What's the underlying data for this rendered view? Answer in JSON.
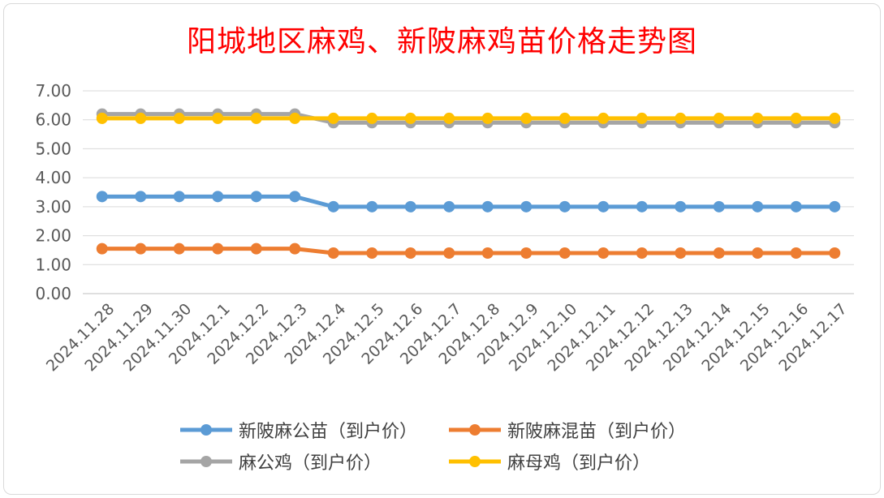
{
  "chart_data": {
    "type": "line",
    "title": "阳城地区麻鸡、新陂麻鸡苗价格走势图",
    "categories": [
      "2024.11.28",
      "2024.11.29",
      "2024.11.30",
      "2024.12.1",
      "2024.12.2",
      "2024.12.3",
      "2024.12.4",
      "2024.12.5",
      "2024.12.6",
      "2024.12.7",
      "2024.12.8",
      "2024.12.9",
      "2024.12.10",
      "2024.12.11",
      "2024.12.12",
      "2024.12.13",
      "2024.12.14",
      "2024.12.15",
      "2024.12.16",
      "2024.12.17"
    ],
    "ylim": [
      0,
      7
    ],
    "yticks": [
      "0.00",
      "1.00",
      "2.00",
      "3.00",
      "4.00",
      "5.00",
      "6.00",
      "7.00"
    ],
    "grid": true,
    "legend_position": "bottom",
    "series": [
      {
        "name": "新陂麻公苗（到户价）",
        "color": "#5b9bd5",
        "values": [
          3.35,
          3.35,
          3.35,
          3.35,
          3.35,
          3.35,
          3.0,
          3.0,
          3.0,
          3.0,
          3.0,
          3.0,
          3.0,
          3.0,
          3.0,
          3.0,
          3.0,
          3.0,
          3.0,
          3.0
        ]
      },
      {
        "name": "新陂麻混苗（到户价）",
        "color": "#ed7d31",
        "values": [
          1.55,
          1.55,
          1.55,
          1.55,
          1.55,
          1.55,
          1.4,
          1.4,
          1.4,
          1.4,
          1.4,
          1.4,
          1.4,
          1.4,
          1.4,
          1.4,
          1.4,
          1.4,
          1.4,
          1.4
        ]
      },
      {
        "name": "麻公鸡（到户价）",
        "color": "#a5a5a5",
        "values": [
          6.2,
          6.2,
          6.2,
          6.2,
          6.2,
          6.2,
          5.9,
          5.9,
          5.9,
          5.9,
          5.9,
          5.9,
          5.9,
          5.9,
          5.9,
          5.9,
          5.9,
          5.9,
          5.9,
          5.9
        ]
      },
      {
        "name": "麻母鸡（到户价）",
        "color": "#ffc000",
        "values": [
          6.05,
          6.05,
          6.05,
          6.05,
          6.05,
          6.05,
          6.05,
          6.05,
          6.05,
          6.05,
          6.05,
          6.05,
          6.05,
          6.05,
          6.05,
          6.05,
          6.05,
          6.05,
          6.05,
          6.05
        ]
      }
    ]
  }
}
